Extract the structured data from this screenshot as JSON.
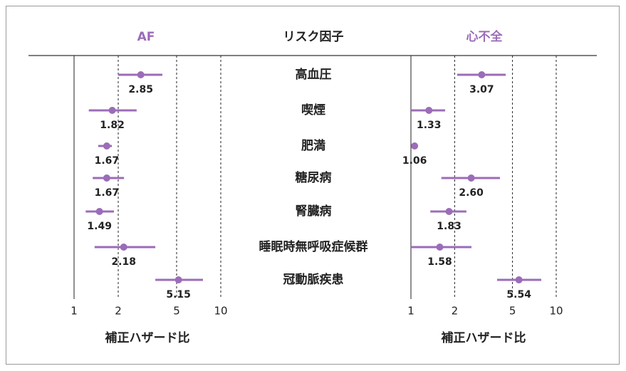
{
  "chart_data": {
    "type": "forest",
    "column_header": "リスク因子",
    "categories": [
      "高血圧",
      "喫煙",
      "肥満",
      "糖尿病",
      "腎臓病",
      "睡眠時無呼吸症候群",
      "冠動脈疾患"
    ],
    "color": "#9b6cb8",
    "log_x": true,
    "panels": [
      {
        "title": "AF",
        "xlabel": "補正ハザード比",
        "values": [
          2.85,
          1.82,
          1.67,
          1.67,
          1.49,
          2.18,
          5.15
        ],
        "value_labels": [
          "2.85",
          "1.82",
          "1.67",
          "1.67",
          "1.49",
          "2.18",
          "5.15"
        ],
        "ci_low": [
          2.0,
          1.26,
          1.46,
          1.34,
          1.2,
          1.38,
          3.58
        ],
        "ci_high": [
          4.0,
          2.67,
          1.81,
          2.19,
          1.87,
          3.58,
          7.56
        ],
        "xlim": [
          1,
          10
        ],
        "xticks": [
          1,
          2,
          5,
          10
        ]
      },
      {
        "title": "心不全",
        "xlabel": "補正ハザード比",
        "values": [
          3.07,
          1.33,
          1.06,
          2.6,
          1.83,
          1.58,
          5.54
        ],
        "value_labels": [
          "3.07",
          "1.33",
          "1.06",
          "2.60",
          "1.83",
          "1.58",
          "5.54"
        ],
        "ci_low": [
          2.08,
          1.0,
          1.04,
          1.62,
          1.36,
          1.0,
          3.92
        ],
        "ci_high": [
          4.49,
          1.72,
          1.08,
          4.1,
          2.41,
          2.61,
          7.89
        ],
        "xlim": [
          1,
          10
        ],
        "xticks": [
          1,
          2,
          5,
          10
        ]
      }
    ]
  }
}
